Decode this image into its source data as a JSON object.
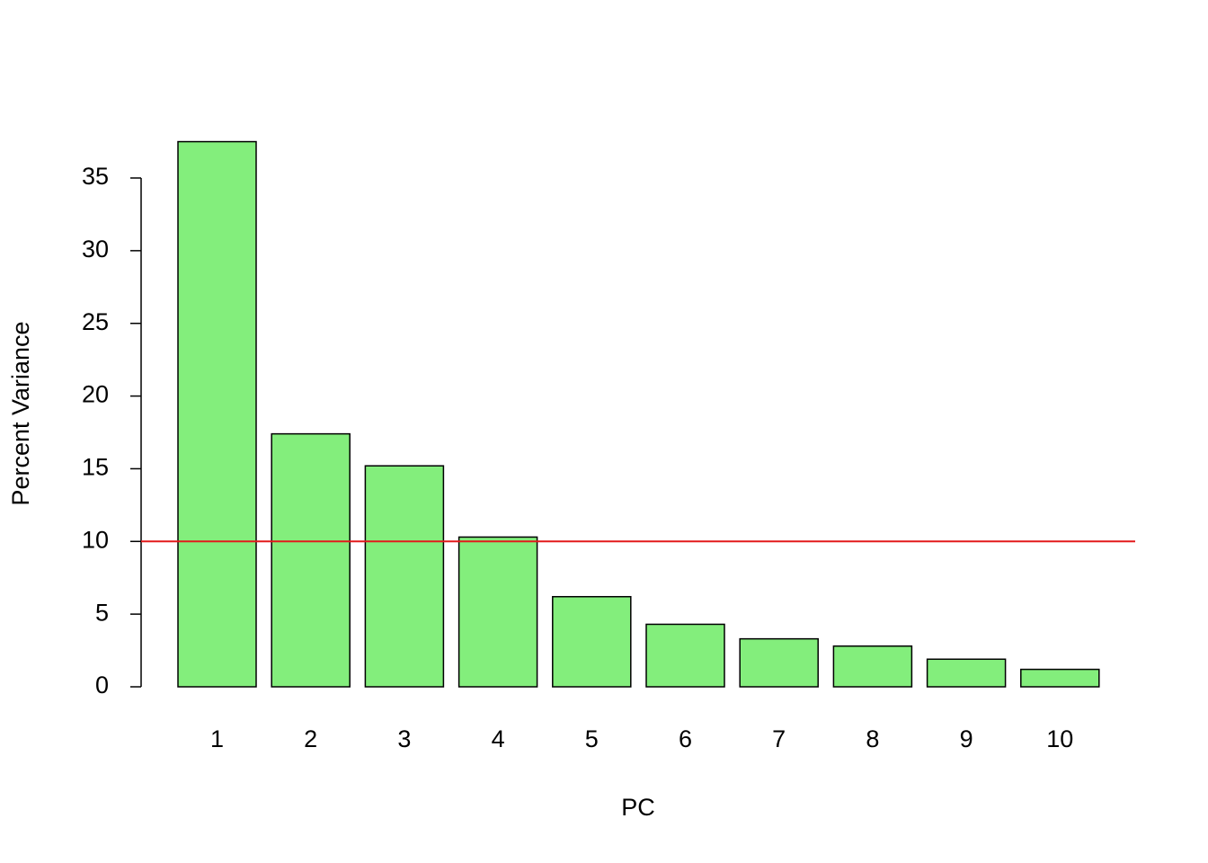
{
  "chart_data": {
    "type": "bar",
    "x_label": "PC",
    "y_label": "Percent Variance",
    "categories": [
      "1",
      "2",
      "3",
      "4",
      "5",
      "6",
      "7",
      "8",
      "9",
      "10"
    ],
    "values": [
      37.5,
      17.4,
      15.2,
      10.3,
      6.2,
      4.3,
      3.3,
      2.8,
      1.9,
      1.2
    ],
    "color": "#83ee7c",
    "ylim": [
      0,
      35
    ],
    "yticks": [
      0,
      5,
      10,
      15,
      20,
      25,
      30,
      35
    ],
    "hline": {
      "value": 10,
      "color": "#e31a1c"
    }
  }
}
